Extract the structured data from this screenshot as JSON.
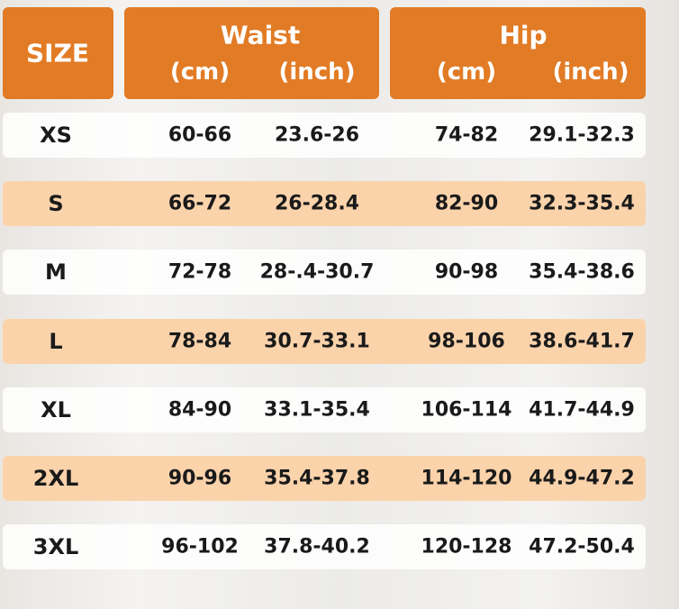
{
  "header": {
    "size": "SIZE",
    "waist": "Waist",
    "hip": "Hip",
    "units": [
      "(cm)",
      "(inch)",
      "(cm)",
      "(inch)"
    ]
  },
  "table": {
    "rows": [
      [
        "XS",
        "60-66",
        "23.6-26",
        "74-82",
        "29.1-32.3"
      ],
      [
        "S",
        "66-72",
        "26-28.4",
        "82-90",
        "32.3-35.4"
      ],
      [
        "M",
        "72-78",
        "28-.4-30.7",
        "90-98",
        "35.4-38.6"
      ],
      [
        "L",
        "78-84",
        "30.7-33.1",
        "98-106",
        "38.6-41.7"
      ],
      [
        "XL",
        "84-90",
        "33.1-35.4",
        "106-114",
        "41.7-44.9"
      ],
      [
        "2XL",
        "90-96",
        "35.4-37.8",
        "114-120",
        "44.9-47.2"
      ],
      [
        "3XL",
        "96-102",
        "37.8-40.2",
        "120-128",
        "47.2-50.4"
      ]
    ]
  }
}
